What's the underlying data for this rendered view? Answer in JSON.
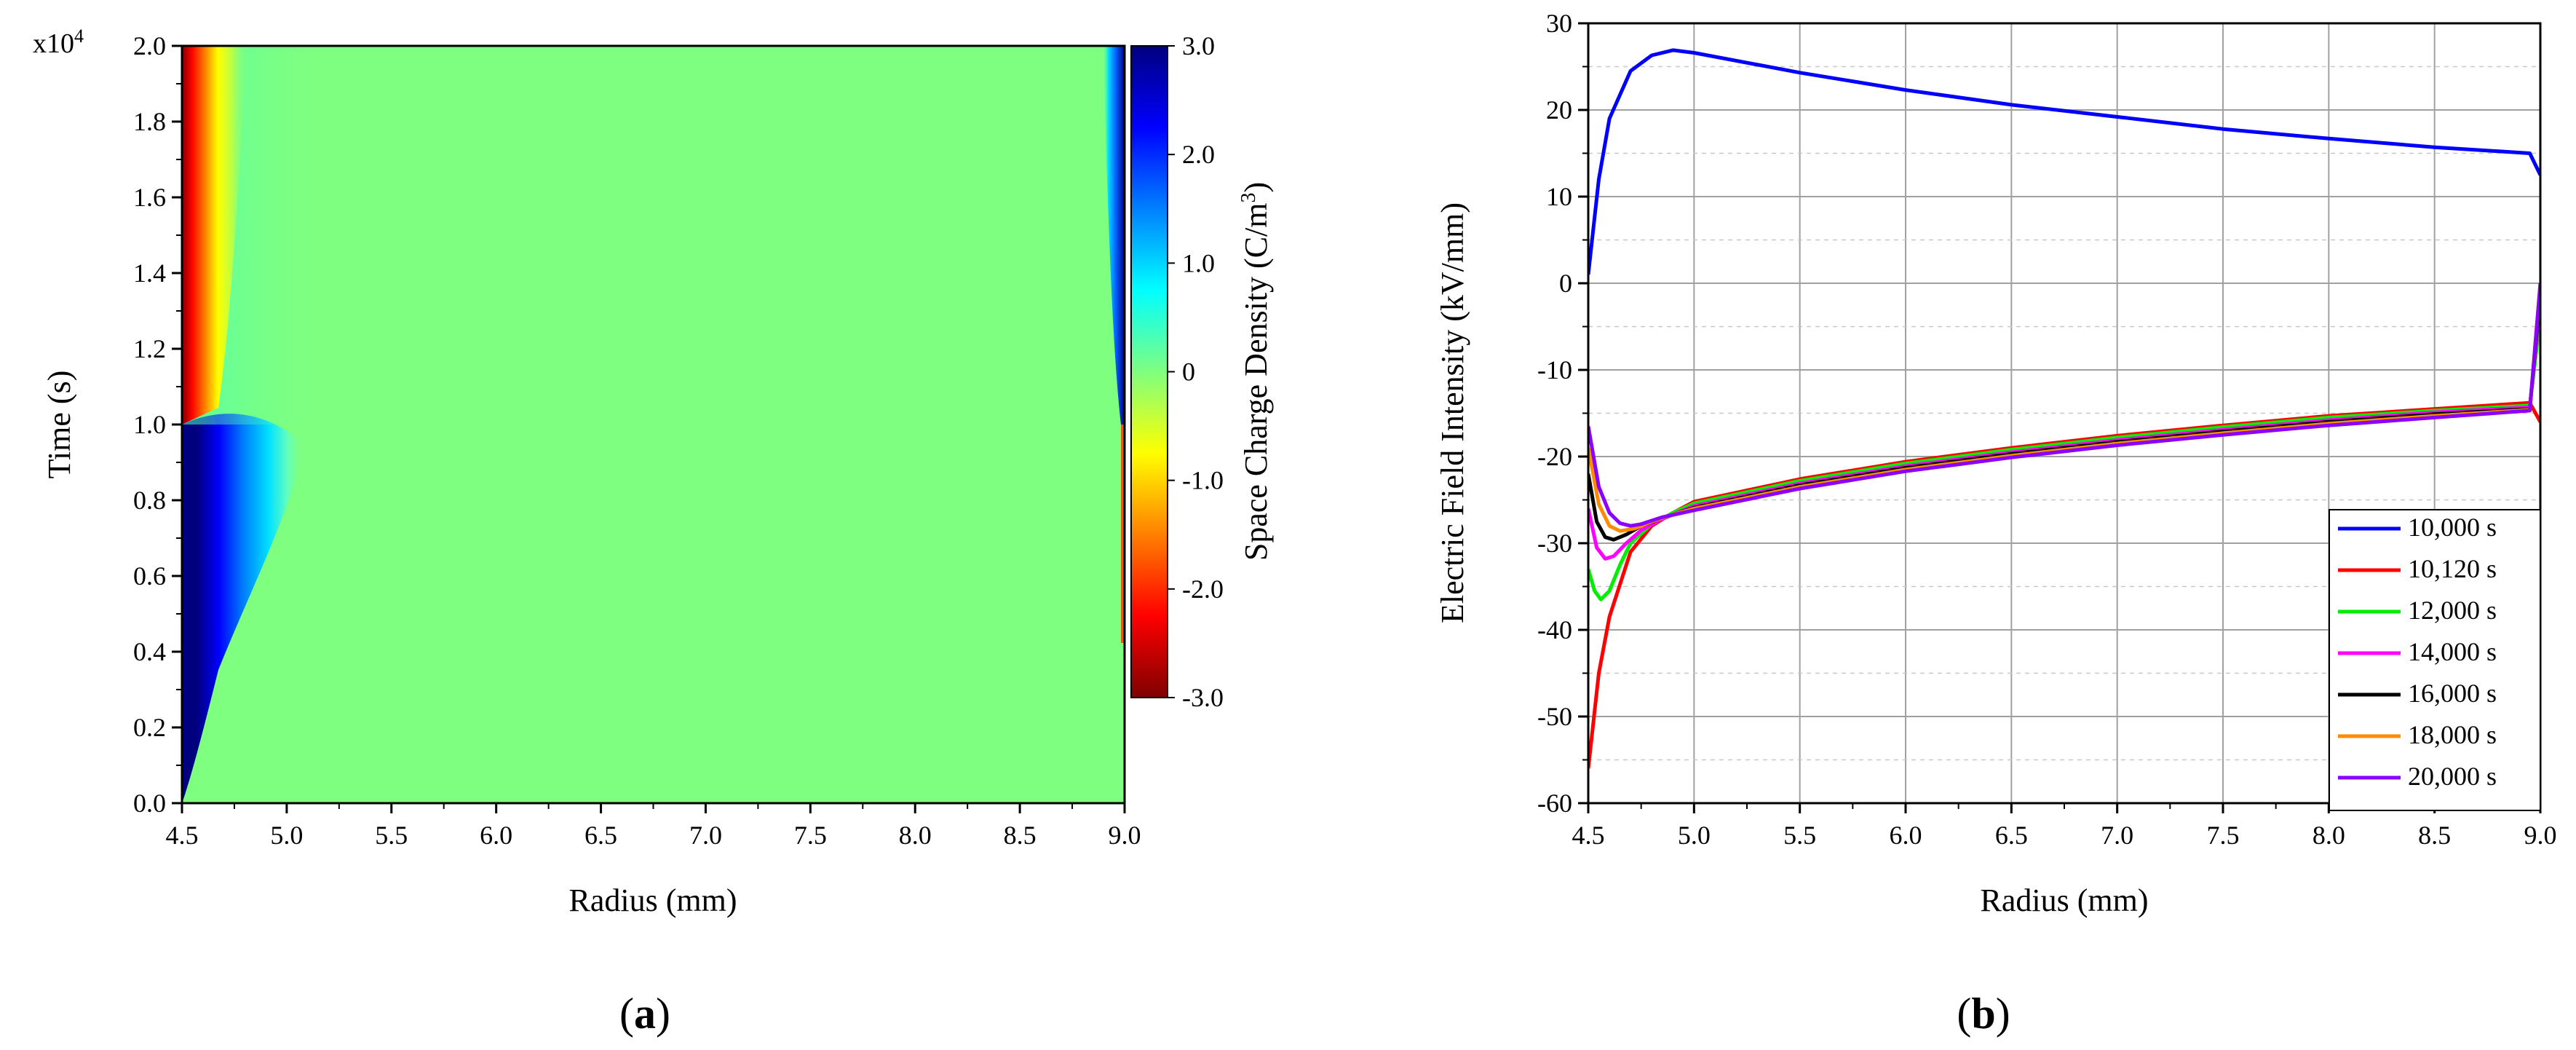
{
  "chart_data": [
    {
      "type": "heatmap",
      "panel_label": "a",
      "xlabel": "Radius (mm)",
      "ylabel": "Time (s)",
      "y_multiplier_label": "x10",
      "y_multiplier_exp": "4",
      "xlim": [
        4.5,
        9.0
      ],
      "ylim": [
        0.0,
        2.0
      ],
      "x_ticks": [
        "4.5",
        "5.0",
        "5.5",
        "6.0",
        "6.5",
        "7.0",
        "7.5",
        "8.0",
        "8.5",
        "9.0"
      ],
      "y_ticks": [
        "0.0",
        "0.2",
        "0.4",
        "0.6",
        "0.8",
        "1.0",
        "1.2",
        "1.4",
        "1.6",
        "1.8",
        "2.0"
      ],
      "colorbar": {
        "label": "Space Charge Density (C/m",
        "label_sup": "3",
        "label_close": ")",
        "range": [
          -3.0,
          3.0
        ],
        "ticks": [
          "3.0",
          "2.0",
          "1.0",
          "0",
          "-1.0",
          "-2.0",
          "-3.0"
        ],
        "colormap": "jet_reversed"
      },
      "background_value": 0.0,
      "regions": [
        {
          "name": "inner-negative-charge-early",
          "radius_range": [
            4.5,
            4.65
          ],
          "time_range": [
            0.0,
            1.0
          ],
          "value": 3.0
        },
        {
          "name": "inner-positive-charge-late",
          "radius_range": [
            4.5,
            4.6
          ],
          "time_range": [
            1.0,
            2.0
          ],
          "value": -3.0
        },
        {
          "name": "outer-charge-late",
          "radius_range": [
            8.96,
            9.0
          ],
          "time_range": [
            1.0,
            2.0
          ],
          "value": 3.0
        }
      ]
    },
    {
      "type": "line",
      "panel_label": "b",
      "xlabel": "Radius (mm)",
      "ylabel": "Electric Field Intensity (kV/mm)",
      "xlim": [
        4.5,
        9.0
      ],
      "ylim": [
        -60,
        30
      ],
      "x_ticks": [
        "4.5",
        "5.0",
        "5.5",
        "6.0",
        "6.5",
        "7.0",
        "7.5",
        "8.0",
        "8.5",
        "9.0"
      ],
      "y_ticks": [
        "30",
        "20",
        "10",
        "0",
        "-10",
        "-20",
        "-30",
        "-40",
        "-50",
        "-60"
      ],
      "grid": true,
      "legend_position": "bottom-right",
      "series": [
        {
          "name": "10,000 s",
          "color": "#0000ff",
          "x": [
            4.5,
            4.55,
            4.6,
            4.7,
            4.8,
            4.9,
            5.0,
            5.5,
            6.0,
            6.5,
            7.0,
            7.5,
            8.0,
            8.5,
            8.95,
            9.0
          ],
          "y": [
            1,
            12,
            19,
            24.5,
            26.3,
            26.9,
            26.6,
            24.3,
            22.3,
            20.6,
            19.2,
            17.8,
            16.7,
            15.7,
            15.0,
            12.5
          ]
        },
        {
          "name": "10,120 s",
          "color": "#ff0000",
          "x": [
            4.5,
            4.55,
            4.6,
            4.7,
            4.8,
            4.9,
            5.0,
            5.5,
            6.0,
            6.5,
            7.0,
            7.5,
            8.0,
            8.5,
            8.95,
            9.0
          ],
          "y": [
            -56,
            -45,
            -38.5,
            -31,
            -28,
            -26.5,
            -25.2,
            -22.6,
            -20.6,
            -19,
            -17.6,
            -16.4,
            -15.3,
            -14.5,
            -13.8,
            -16
          ]
        },
        {
          "name": "12,000 s",
          "color": "#00ee00",
          "x": [
            4.5,
            4.53,
            4.56,
            4.6,
            4.65,
            4.7,
            4.8,
            4.9,
            5.0,
            5.5,
            6.0,
            6.5,
            7.0,
            7.5,
            8.0,
            8.5,
            8.95,
            9.0
          ],
          "y": [
            -33,
            -35.5,
            -36.5,
            -35.5,
            -32.5,
            -30,
            -27.8,
            -26.5,
            -25.4,
            -22.8,
            -20.8,
            -19.2,
            -17.8,
            -16.6,
            -15.5,
            -14.7,
            -14.1,
            -4
          ]
        },
        {
          "name": "14,000 s",
          "color": "#ff00ff",
          "x": [
            4.5,
            4.54,
            4.58,
            4.62,
            4.68,
            4.75,
            4.85,
            5.0,
            5.5,
            6.0,
            6.5,
            7.0,
            7.5,
            8.0,
            8.5,
            8.95,
            9.0
          ],
          "y": [
            -26,
            -30.5,
            -31.8,
            -31.5,
            -30,
            -28.5,
            -27.2,
            -25.7,
            -23.1,
            -21.1,
            -19.5,
            -18.1,
            -16.9,
            -15.8,
            -14.9,
            -14.3,
            -2
          ]
        },
        {
          "name": "16,000 s",
          "color": "#000000",
          "x": [
            4.5,
            4.54,
            4.58,
            4.62,
            4.68,
            4.75,
            4.85,
            5.0,
            5.5,
            6.0,
            6.5,
            7.0,
            7.5,
            8.0,
            8.5,
            8.95,
            9.0
          ],
          "y": [
            -22,
            -27.5,
            -29.3,
            -29.6,
            -29,
            -28,
            -27.1,
            -25.9,
            -23.3,
            -21.3,
            -19.7,
            -18.3,
            -17.1,
            -16.0,
            -15.1,
            -14.5,
            -1
          ]
        },
        {
          "name": "18,000 s",
          "color": "#ff8c00",
          "x": [
            4.5,
            4.55,
            4.6,
            4.65,
            4.72,
            4.8,
            4.9,
            5.0,
            5.5,
            6.0,
            6.5,
            7.0,
            7.5,
            8.0,
            8.5,
            8.95,
            9.0
          ],
          "y": [
            -19,
            -25.5,
            -28,
            -28.6,
            -28.3,
            -27.5,
            -26.7,
            -26.0,
            -23.5,
            -21.5,
            -19.9,
            -18.5,
            -17.3,
            -16.2,
            -15.3,
            -14.6,
            0
          ]
        },
        {
          "name": "20,000 s",
          "color": "#8b00ff",
          "x": [
            4.5,
            4.55,
            4.6,
            4.65,
            4.7,
            4.75,
            4.85,
            5.0,
            5.5,
            6.0,
            6.5,
            7.0,
            7.5,
            8.0,
            8.5,
            8.95,
            9.0
          ],
          "y": [
            -16.5,
            -23.5,
            -26.5,
            -27.7,
            -28,
            -27.8,
            -27.0,
            -26.2,
            -23.7,
            -21.7,
            -20.1,
            -18.7,
            -17.5,
            -16.4,
            -15.5,
            -14.7,
            0
          ]
        }
      ]
    }
  ]
}
